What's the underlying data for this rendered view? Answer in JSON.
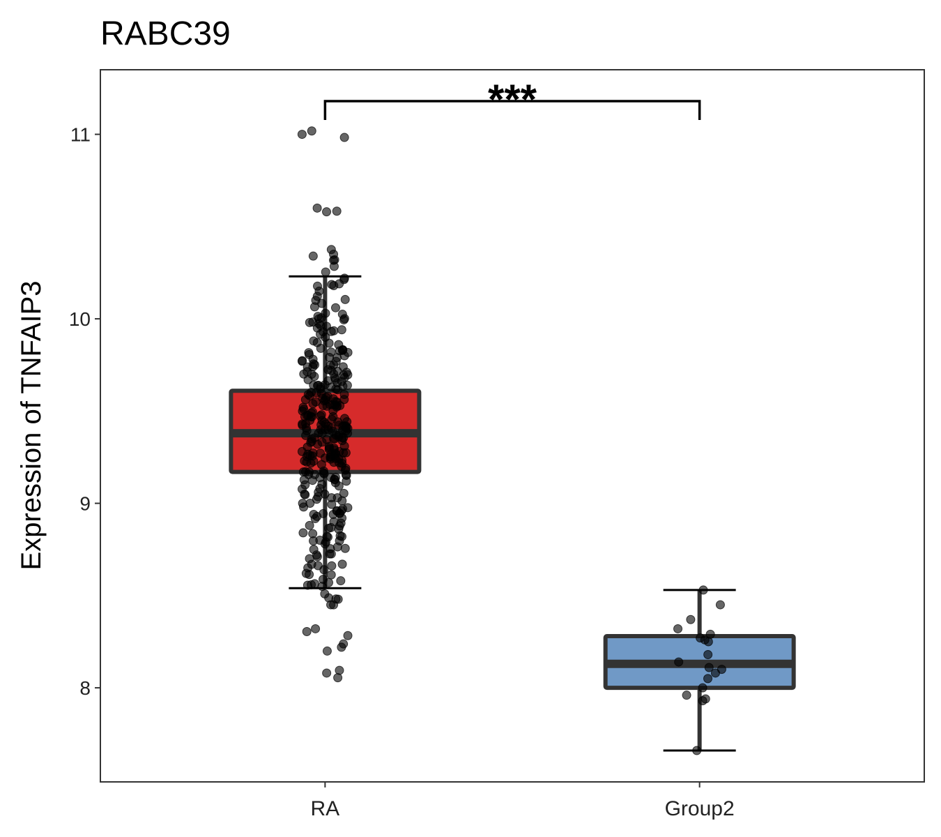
{
  "chart_data": {
    "type": "boxplot",
    "title": "RABC39",
    "xlabel": "",
    "ylabel": "Expression of TNFAIP3",
    "ylim": [
      7.49,
      11.35
    ],
    "yticks": [
      8,
      9,
      10,
      11
    ],
    "categories": [
      "RA",
      "Group2"
    ],
    "grid": false,
    "legend": "none",
    "significance": {
      "label": "***",
      "from": "RA",
      "to": "Group2",
      "y": 11.18
    },
    "series": [
      {
        "name": "RA",
        "color": "#D62B2B",
        "box": {
          "lower_whisker": 8.54,
          "q1": 9.17,
          "median": 9.38,
          "q3": 9.61,
          "upper_whisker": 10.23
        },
        "points": [
          11.0,
          10.58,
          10.35,
          10.32,
          10.22,
          10.18,
          10.15,
          10.1,
          10.06,
          10.03,
          10.0,
          9.98,
          9.95,
          9.93,
          9.9,
          9.88,
          9.86,
          9.84,
          9.82,
          9.8,
          9.79,
          9.77,
          9.75,
          9.74,
          9.72,
          9.71,
          9.7,
          9.68,
          9.67,
          9.66,
          9.64,
          9.63,
          9.62,
          9.6,
          9.59,
          9.58,
          9.57,
          9.56,
          9.55,
          9.54,
          9.53,
          9.52,
          9.51,
          9.5,
          9.49,
          9.48,
          9.47,
          9.46,
          9.45,
          9.44,
          9.43,
          9.42,
          9.41,
          9.4,
          9.39,
          9.38,
          9.38,
          9.37,
          9.36,
          9.35,
          9.34,
          9.33,
          9.32,
          9.31,
          9.3,
          9.29,
          9.28,
          9.27,
          9.26,
          9.25,
          9.24,
          9.23,
          9.22,
          9.21,
          9.2,
          9.19,
          9.18,
          9.17,
          9.16,
          9.14,
          9.13,
          9.12,
          9.1,
          9.08,
          9.06,
          9.05,
          9.03,
          9.0,
          8.98,
          8.96,
          8.94,
          8.92,
          8.9,
          8.88,
          8.86,
          8.84,
          8.82,
          8.8,
          8.78,
          8.75,
          8.72,
          8.7,
          8.67,
          8.65,
          8.62,
          8.58,
          8.55,
          8.48,
          8.45,
          8.32,
          8.22,
          8.08
        ]
      },
      {
        "name": "Group2",
        "color": "#7099C6",
        "box": {
          "lower_whisker": 7.66,
          "q1": 8.0,
          "median": 8.13,
          "q3": 8.28,
          "upper_whisker": 8.53
        },
        "points": [
          8.53,
          8.45,
          8.37,
          8.32,
          8.29,
          8.27,
          8.26,
          8.25,
          8.18,
          8.14,
          8.11,
          8.1,
          8.08,
          8.05,
          8.0,
          7.96,
          7.94,
          7.93,
          7.66
        ]
      }
    ]
  }
}
